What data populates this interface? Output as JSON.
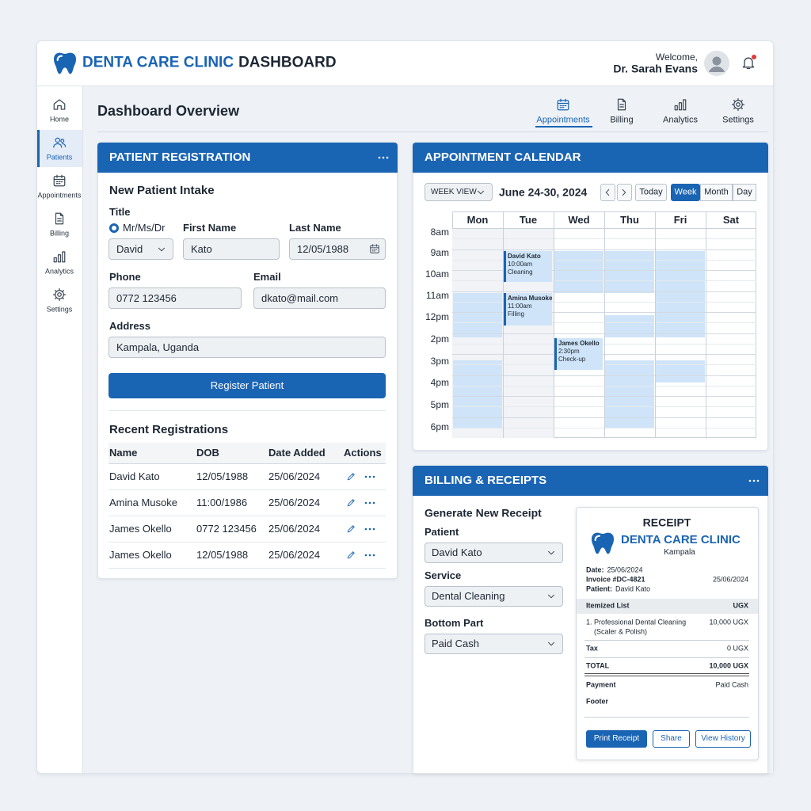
{
  "header": {
    "brand": "DENTA CARE CLINIC",
    "brand_suffix": "DASHBOARD",
    "welcome": "Welcome,",
    "user": "Dr. Sarah Evans"
  },
  "sidebar": [
    "Home",
    "Patients",
    "Appointments",
    "Billing",
    "Analytics",
    "Settings"
  ],
  "page_title": "Dashboard Overview",
  "tabs": [
    "Appointments",
    "Billing",
    "Analytics",
    "Settings"
  ],
  "registration": {
    "title": "PATIENT REGISTRATION",
    "intake": "New Patient Intake",
    "title_label": "Title",
    "title_option": "Mr/Ms/Dr",
    "title_value": "David",
    "first_name_label": "First Name",
    "first_name": "Kato",
    "last_name_label": "Last Name",
    "last_name": "12/05/1988",
    "phone_label": "Phone",
    "phone": "0772 123456",
    "email_label": "Email",
    "email": "dkato@mail.com",
    "address_label": "Address",
    "address": "Kampala, Uganda",
    "button": "Register Patient",
    "recent_title": "Recent Registrations",
    "columns": [
      "Name",
      "DOB",
      "Date Added",
      "Actions"
    ],
    "rows": [
      [
        "David Kato",
        "12/05/1988",
        "25/06/2024"
      ],
      [
        "Amina Musoke",
        "11:00/1986",
        "25/06/2024"
      ],
      [
        "James Okello",
        "0772 123456",
        "25/06/2024"
      ],
      [
        "James Okello",
        "12/05/1988",
        "25/06/2024"
      ]
    ]
  },
  "calendar": {
    "title": "APPOINTMENT CALENDAR",
    "view": "WEEK VIEW",
    "range": "June 24-30, 2024",
    "today": "Today",
    "modes": [
      "Week",
      "Month",
      "Day"
    ],
    "days": [
      "Mon",
      "Tue",
      "Wed",
      "Thu",
      "Fri",
      "Sat"
    ],
    "times": [
      "8am",
      "9am",
      "10am",
      "11am",
      "12pm",
      "2pm",
      "3pm",
      "4pm",
      "5pm",
      "6pm"
    ],
    "appointments": [
      {
        "name": "David Kato",
        "time": "10:00am",
        "service": "Cleaning"
      },
      {
        "name": "Amina Musoke",
        "time": "11:00am",
        "service": "Filling"
      },
      {
        "name": "James Okello",
        "time": "2:30pm",
        "service": "Check-up"
      }
    ]
  },
  "billing": {
    "title": "BILLING & RECEIPTS",
    "heading": "Generate New Receipt",
    "fields": [
      {
        "label": "Patient",
        "value": "David Kato"
      },
      {
        "label": "Service",
        "value": "Dental Cleaning"
      },
      {
        "label": "Bottom Part",
        "value": "Paid Cash"
      }
    ],
    "receipt": {
      "title": "RECEIPT",
      "clinic": "DENTA CARE CLINIC",
      "city": "Kampala",
      "date_label": "Date:",
      "date": "25/06/2024",
      "invoice": "Invoice #DC-4821",
      "invoice_date": "25/06/2024",
      "patient_label": "Patient:",
      "patient": "David Kato",
      "items_header": "Itemized List",
      "currency": "UGX",
      "item": "1. Professional Dental Cleaning",
      "item_detail": "(Scaler & Polish)",
      "item_amount": "10,000 UGX",
      "tax_label": "Tax",
      "tax": "0 UGX",
      "total_label": "TOTAL",
      "total": "10,000 UGX",
      "payment_label": "Payment",
      "payment": "Paid Cash",
      "footer": "Footer",
      "buttons": [
        "Print Receipt",
        "Share",
        "View History"
      ]
    }
  }
}
